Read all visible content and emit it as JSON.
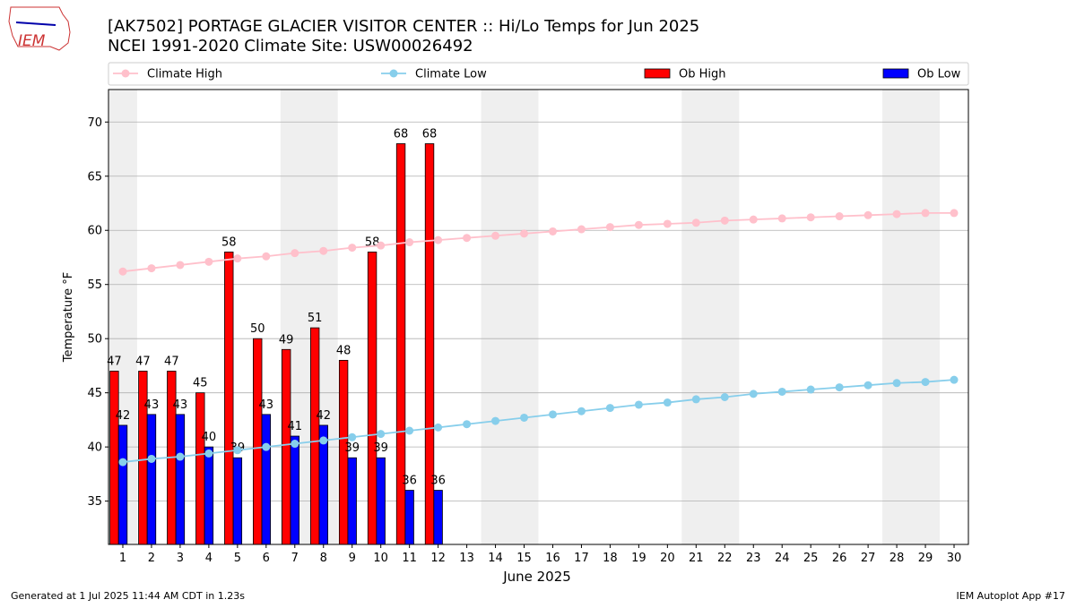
{
  "chart_data": {
    "type": "bar_line",
    "logo_text": "IEM",
    "title": "[AK7502] PORTAGE GLACIER VISITOR CENTER :: Hi/Lo Temps for Jun 2025",
    "subtitle": "NCEI 1991-2020 Climate Site: USW00026492",
    "xlabel": "June 2025",
    "ylabel": "Temperature °F",
    "footer_left": "Generated at 1 Jul 2025 11:44 AM CDT in 1.23s",
    "footer_right": "IEM Autoplot App #17",
    "x": [
      1,
      2,
      3,
      4,
      5,
      6,
      7,
      8,
      9,
      10,
      11,
      12,
      13,
      14,
      15,
      16,
      17,
      18,
      19,
      20,
      21,
      22,
      23,
      24,
      25,
      26,
      27,
      28,
      29,
      30
    ],
    "xlim": [
      0.5,
      30.5
    ],
    "xticks": [
      1,
      2,
      3,
      4,
      5,
      6,
      7,
      8,
      9,
      10,
      11,
      12,
      13,
      14,
      15,
      16,
      17,
      18,
      19,
      20,
      21,
      22,
      23,
      24,
      25,
      26,
      27,
      28,
      29,
      30
    ],
    "ylim": [
      31,
      73
    ],
    "yticks": [
      35,
      40,
      45,
      50,
      55,
      60,
      65,
      70
    ],
    "grid": true,
    "shaded_spans": [
      [
        0.5,
        1.5
      ],
      [
        6.5,
        8.5
      ],
      [
        13.5,
        15.5
      ],
      [
        20.5,
        22.5
      ],
      [
        27.5,
        29.5
      ]
    ],
    "shade_color": "#efefef",
    "series": [
      {
        "name": "Climate High",
        "kind": "line",
        "color": "pink",
        "values": [
          56.2,
          56.5,
          56.8,
          57.1,
          57.4,
          57.6,
          57.9,
          58.1,
          58.4,
          58.6,
          58.9,
          59.1,
          59.3,
          59.5,
          59.7,
          59.9,
          60.1,
          60.3,
          60.5,
          60.6,
          60.7,
          60.9,
          61.0,
          61.1,
          61.2,
          61.3,
          61.4,
          61.5,
          61.6,
          61.6
        ]
      },
      {
        "name": "Climate Low",
        "kind": "line",
        "color": "skyblue",
        "values": [
          38.6,
          38.9,
          39.1,
          39.4,
          39.7,
          40.0,
          40.3,
          40.6,
          40.9,
          41.2,
          41.5,
          41.8,
          42.1,
          42.4,
          42.7,
          43.0,
          43.3,
          43.6,
          43.9,
          44.1,
          44.4,
          44.6,
          44.9,
          45.1,
          45.3,
          45.5,
          45.7,
          45.9,
          46.0,
          46.2
        ]
      },
      {
        "name": "Ob High",
        "kind": "bar",
        "color": "red",
        "values": [
          47,
          47,
          47,
          45,
          58,
          50,
          49,
          51,
          48,
          58,
          68,
          68,
          null,
          null,
          null,
          null,
          null,
          null,
          null,
          null,
          null,
          null,
          null,
          null,
          null,
          null,
          null,
          null,
          null,
          null
        ]
      },
      {
        "name": "Ob Low",
        "kind": "bar",
        "color": "blue",
        "values": [
          42,
          43,
          43,
          40,
          39,
          43,
          41,
          42,
          39,
          39,
          36,
          36,
          null,
          null,
          null,
          null,
          null,
          null,
          null,
          null,
          null,
          null,
          null,
          null,
          null,
          null,
          null,
          null,
          null,
          null
        ]
      }
    ]
  }
}
